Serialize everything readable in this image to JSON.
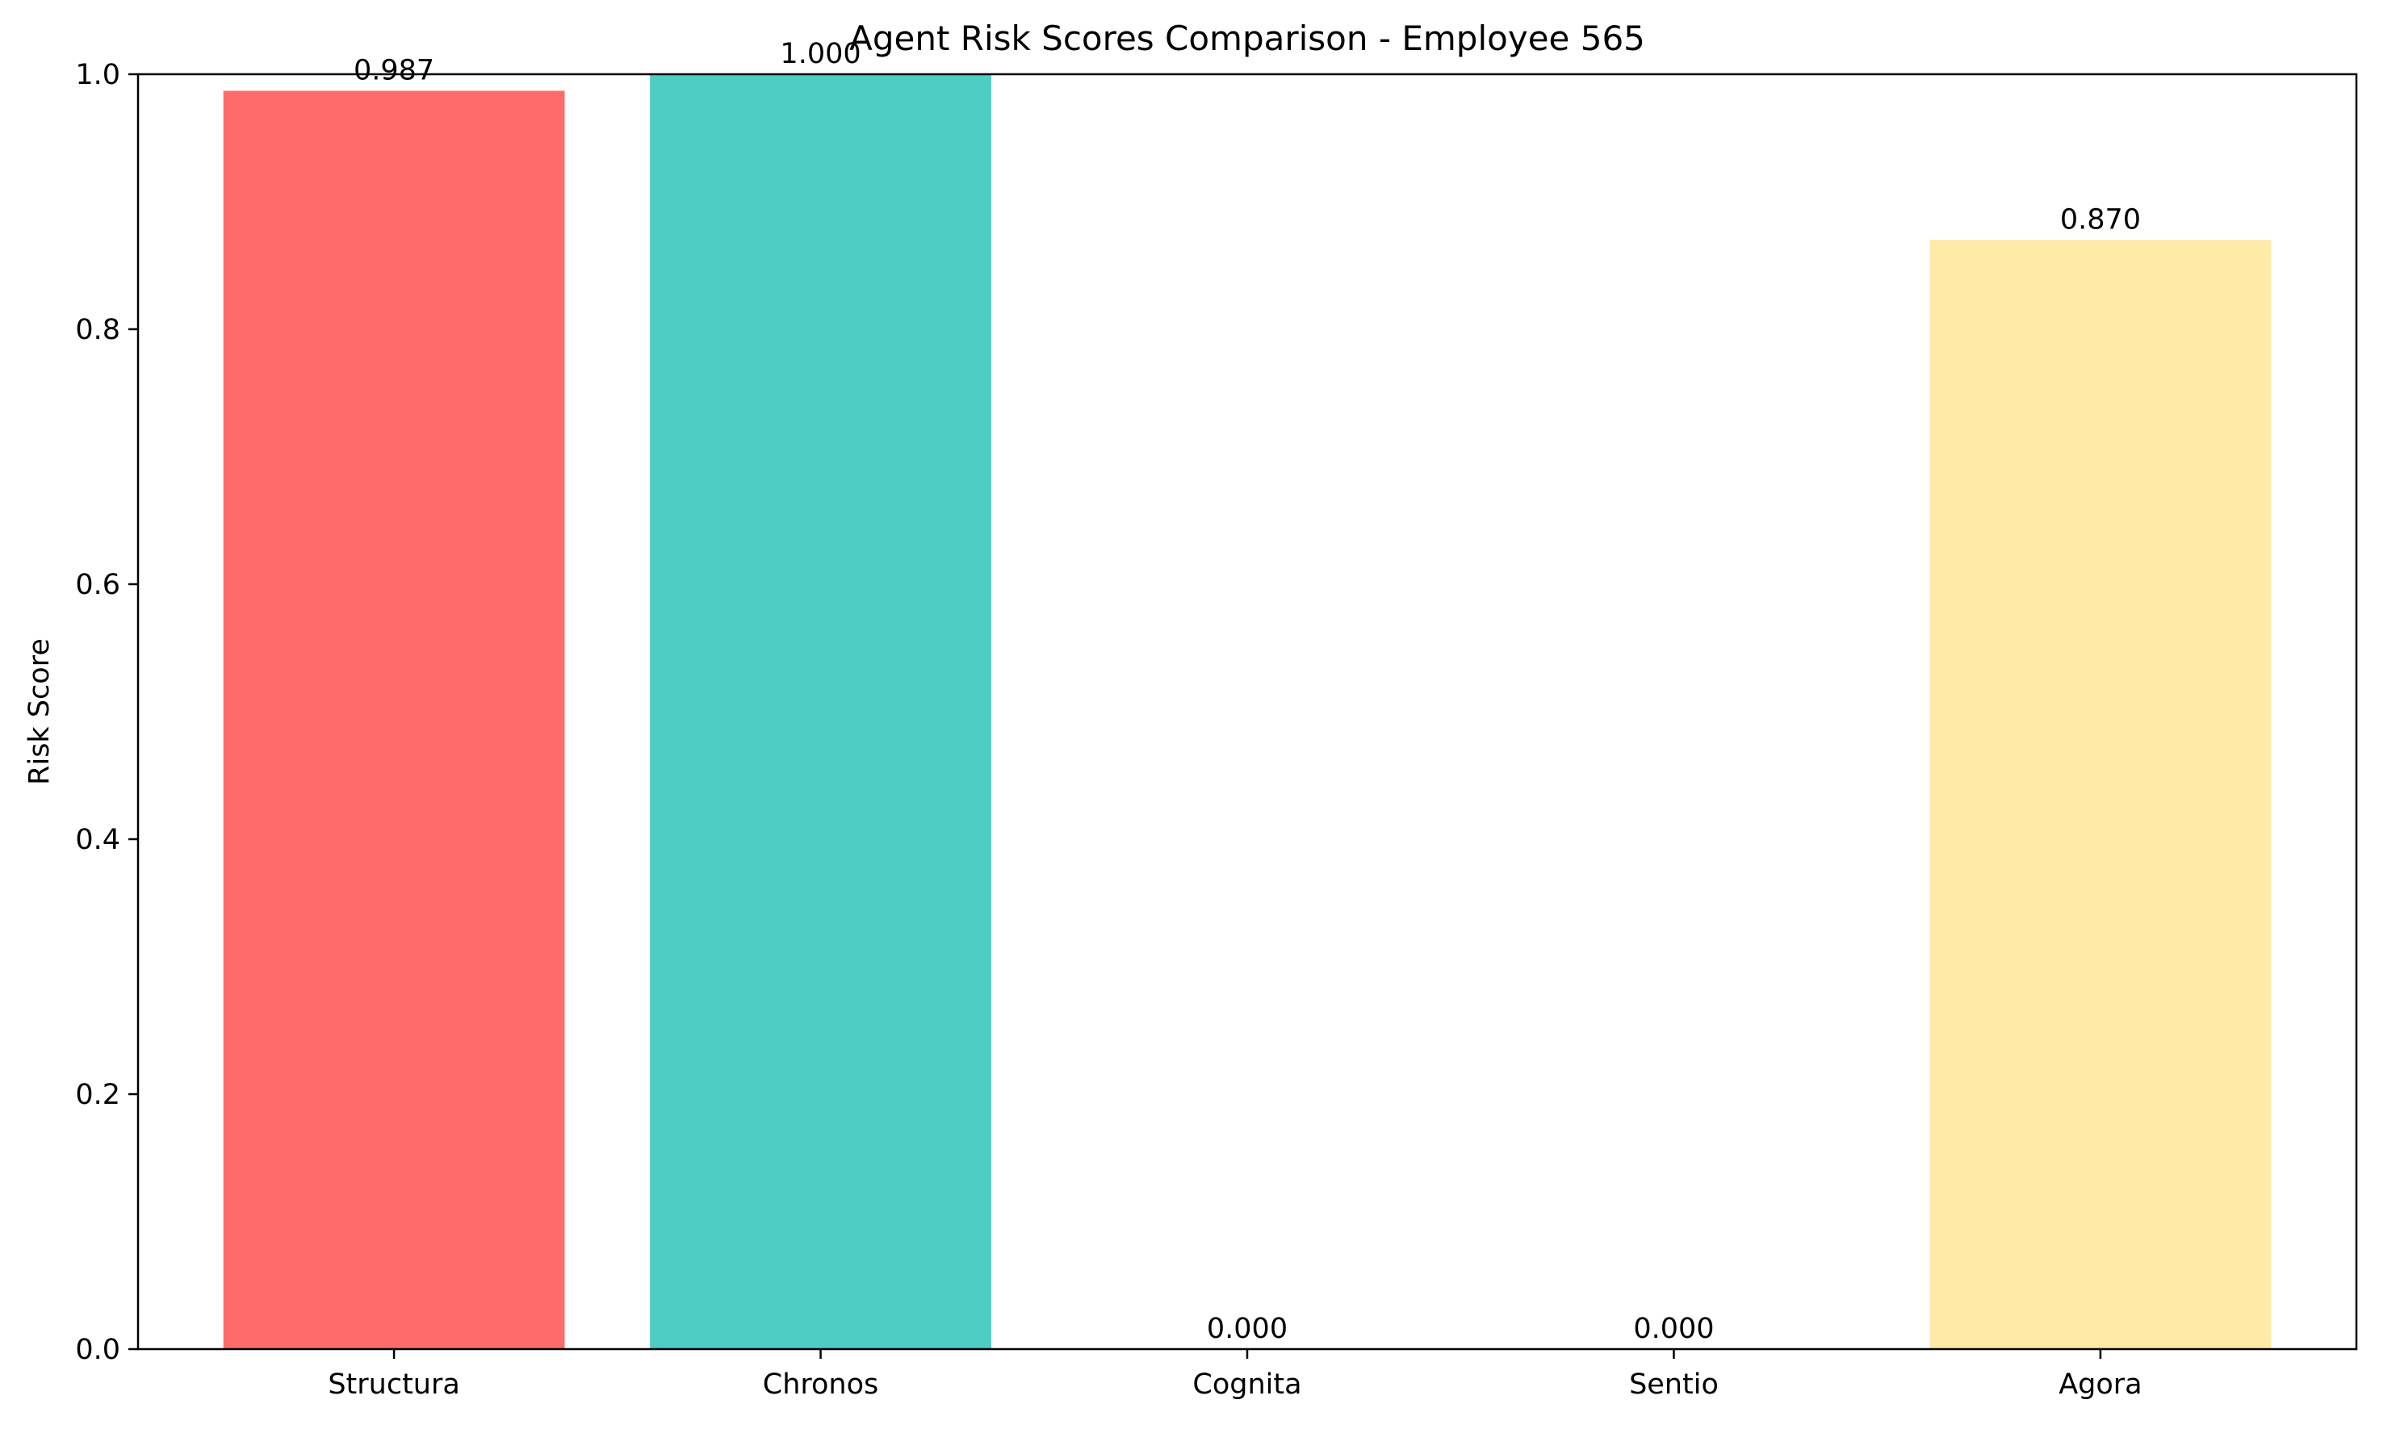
{
  "chart_data": {
    "type": "bar",
    "title": "Agent Risk Scores Comparison - Employee 565",
    "xlabel": "",
    "ylabel": "Risk Score",
    "categories": [
      "Structura",
      "Chronos",
      "Cognita",
      "Sentio",
      "Agora"
    ],
    "values": [
      0.987,
      1.0,
      0.0,
      0.0,
      0.87
    ],
    "value_labels": [
      "0.987",
      "1.000",
      "0.000",
      "0.000",
      "0.870"
    ],
    "colors": [
      "#ff6b6b",
      "#4ecdc4",
      "#45b7d1",
      "#96ceb4",
      "#ffeaa7"
    ],
    "ylim": [
      0,
      1.0
    ],
    "yticks": [
      0.0,
      0.2,
      0.4,
      0.6,
      0.8,
      1.0
    ],
    "ytick_labels": [
      "0.0",
      "0.2",
      "0.4",
      "0.6",
      "0.8",
      "1.0"
    ],
    "grid": false,
    "legend": "none"
  }
}
